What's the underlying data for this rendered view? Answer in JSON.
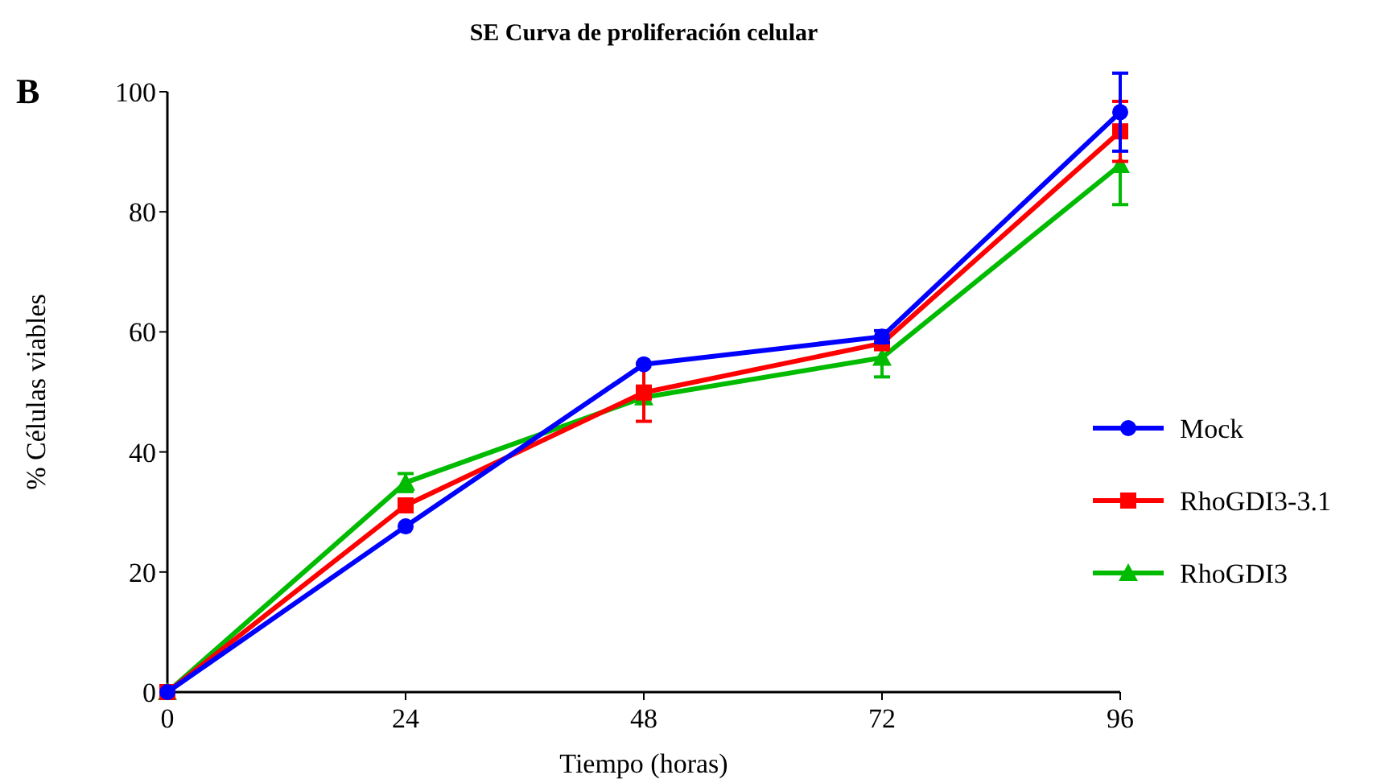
{
  "chart_data": {
    "type": "line",
    "title": "SE Curva de proliferación celular",
    "xlabel": "Tiempo (horas)",
    "ylabel": "% Células viables",
    "annotations": [
      "B"
    ],
    "x": [
      0,
      24,
      48,
      72,
      96
    ],
    "xlim": [
      0,
      96
    ],
    "xticks": [
      0,
      24,
      48,
      72,
      96
    ],
    "ylim": [
      0,
      100
    ],
    "yticks": [
      0,
      20,
      40,
      60,
      80,
      100
    ],
    "grid": false,
    "legend": "right",
    "series": [
      {
        "name": "Mock",
        "color": "#0000ff",
        "marker": "circle",
        "values": [
          0,
          27.6,
          54.6,
          59.2,
          96.6
        ],
        "errors": [
          null,
          null,
          null,
          1,
          6.5
        ]
      },
      {
        "name": "RhoGDI3-3.1",
        "color": "#ff0000",
        "marker": "square",
        "values": [
          0,
          31.1,
          49.9,
          58.1,
          93.4
        ],
        "errors": [
          null,
          null,
          4.8,
          null,
          5
        ]
      },
      {
        "name": "RhoGDI3",
        "color": "#00bb00",
        "marker": "triangle",
        "values": [
          0,
          34.9,
          49.1,
          55.7,
          87.8
        ],
        "errors": [
          null,
          1.5,
          null,
          3.2,
          6.6
        ]
      }
    ]
  }
}
